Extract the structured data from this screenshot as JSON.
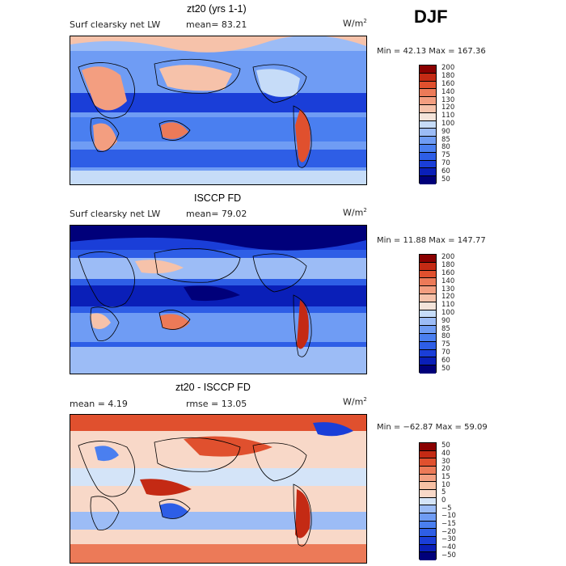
{
  "season": "DJF",
  "panels": [
    {
      "title": "zt20 (yrs 1-1)",
      "left_label": "Surf clearsky net LW",
      "mid_label": "mean=  83.21",
      "units": "W/m",
      "units_sup": "2",
      "minmax": "Min =  42.13 Max = 167.36"
    },
    {
      "title": "ISCCP FD",
      "left_label": "Surf clearsky net LW",
      "mid_label": "mean=  79.02",
      "units": "W/m",
      "units_sup": "2",
      "minmax": "Min =  11.88 Max = 147.77"
    },
    {
      "title": "zt20 - ISCCP FD",
      "left_label": "mean =    4.19",
      "mid_label": "rmse =  13.05",
      "units": "W/m",
      "units_sup": "2",
      "minmax": "Min = −62.87 Max =  59.09"
    }
  ],
  "chart_data": [
    {
      "type": "heatmap",
      "title": "zt20 (yrs 1-1)",
      "field": "Surf clearsky net LW",
      "units": "W/m2",
      "mean": 83.21,
      "min": 42.13,
      "max": 167.36,
      "colorbar_levels": [
        50,
        60,
        70,
        75,
        80,
        85,
        90,
        100,
        110,
        120,
        130,
        140,
        160,
        180,
        200
      ]
    },
    {
      "type": "heatmap",
      "title": "ISCCP FD",
      "field": "Surf clearsky net LW",
      "units": "W/m2",
      "mean": 79.02,
      "min": 11.88,
      "max": 147.77,
      "colorbar_levels": [
        50,
        60,
        70,
        75,
        80,
        85,
        90,
        100,
        110,
        120,
        130,
        140,
        160,
        180,
        200
      ]
    },
    {
      "type": "heatmap",
      "title": "zt20 - ISCCP FD",
      "units": "W/m2",
      "mean": 4.19,
      "rmse": 13.05,
      "min": -62.87,
      "max": 59.09,
      "colorbar_levels": [
        -50,
        -40,
        -30,
        -20,
        -15,
        -10,
        -5,
        0,
        5,
        10,
        15,
        20,
        30,
        40,
        50
      ]
    }
  ],
  "colors": {
    "abs_scale": [
      "#00007a",
      "#0a1fb8",
      "#1a3ed8",
      "#2e5ee6",
      "#4a7ff0",
      "#6f9cf4",
      "#9cbcf6",
      "#c6dcf8",
      "#f4e4da",
      "#f6c2aa",
      "#f39e80",
      "#ec7a58",
      "#e0502e",
      "#c42a14",
      "#8a0000"
    ],
    "diff_scale": [
      "#00007a",
      "#0a1fb8",
      "#1a3ed8",
      "#2e5ee6",
      "#4a7ff0",
      "#6f9cf4",
      "#9cbcf6",
      "#d4e4f8",
      "#f8d8c8",
      "#f6c0a4",
      "#f3a082",
      "#ec7a58",
      "#e0502e",
      "#c42a14",
      "#8a0000"
    ]
  }
}
